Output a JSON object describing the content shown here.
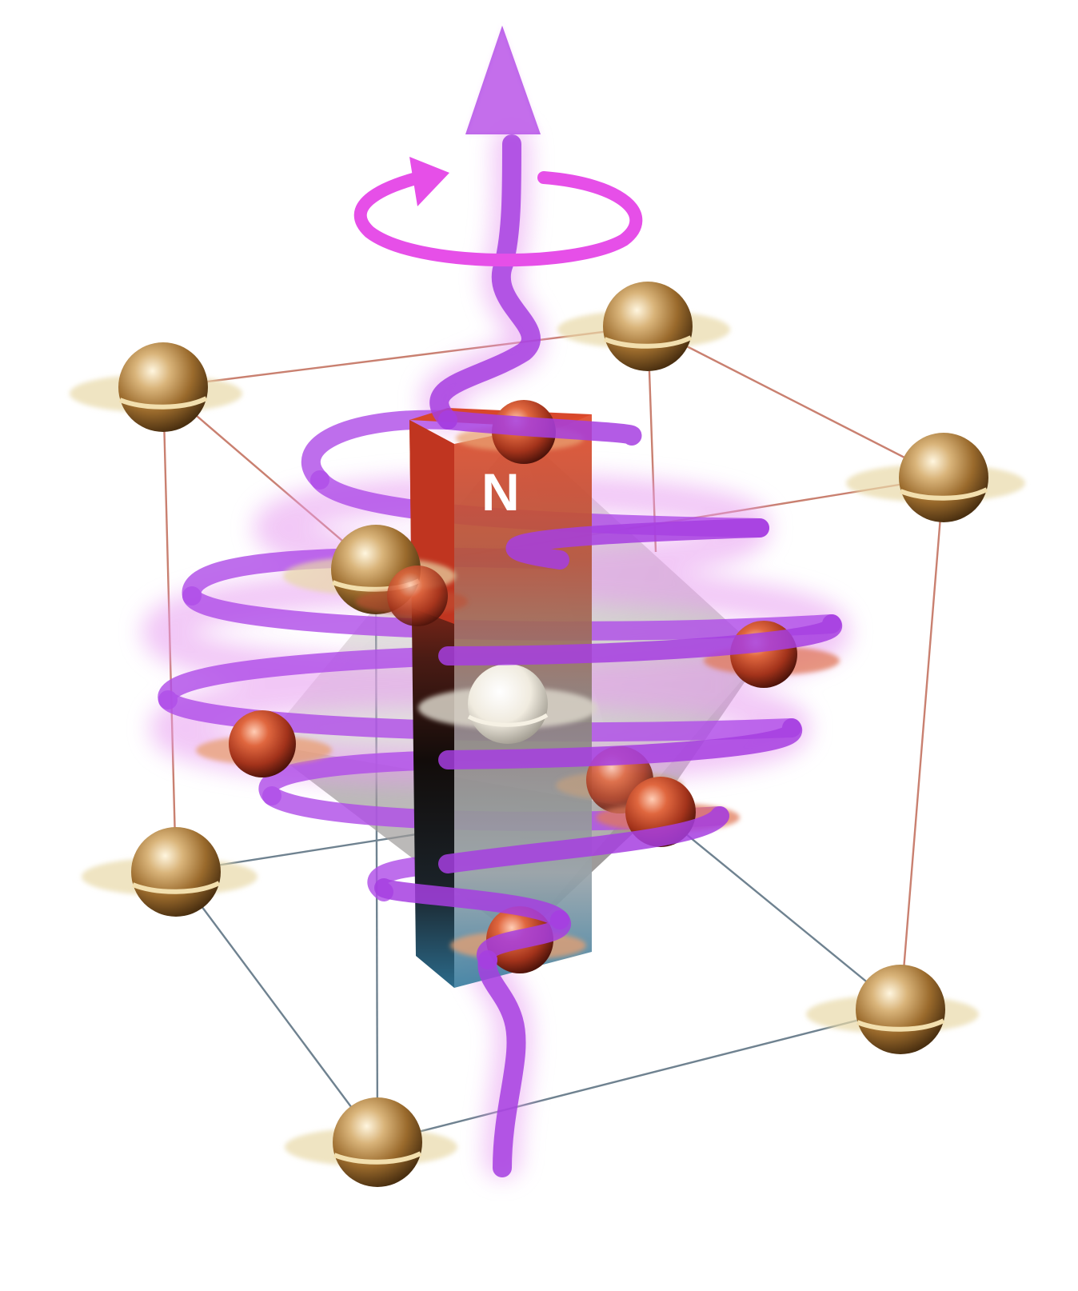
{
  "magnet": {
    "label": "N"
  },
  "colors": {
    "photon": "#b04ee8",
    "rotation_arrow": "#e64fe8",
    "corner_atom": "#b07a3a",
    "face_atom": "#c4402a",
    "center_atom": "#f2efe8",
    "magnet_north": "#c8391f",
    "magnet_south": "#2b5f7c",
    "bond_upper": "#c98070",
    "bond_lower": "#6f8290"
  },
  "icons": [
    "up-arrow-icon",
    "rotation-arrow-icon"
  ]
}
